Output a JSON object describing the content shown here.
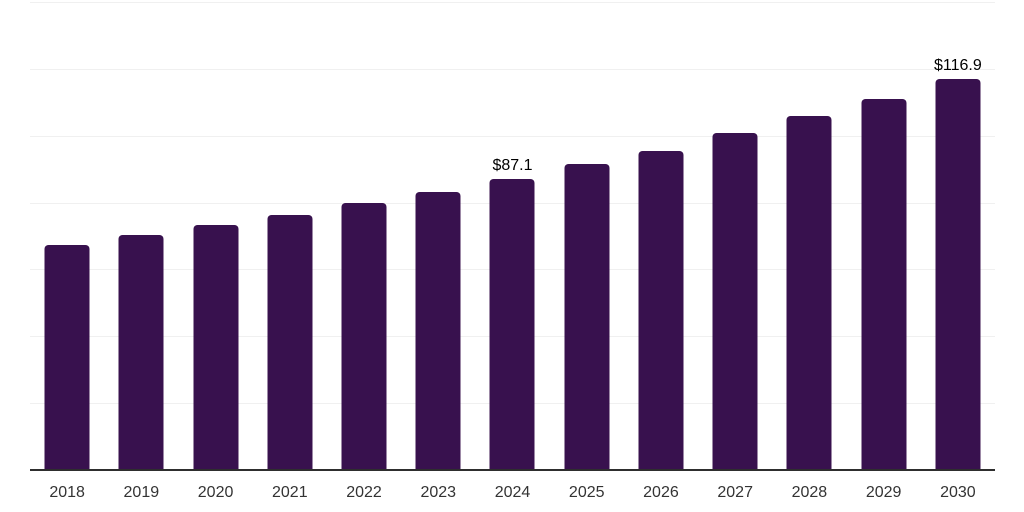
{
  "chart_data": {
    "type": "bar",
    "title": "",
    "xlabel": "",
    "ylabel": "",
    "categories": [
      "2018",
      "2019",
      "2020",
      "2021",
      "2022",
      "2023",
      "2024",
      "2025",
      "2026",
      "2027",
      "2028",
      "2029",
      "2030"
    ],
    "values": [
      67.2,
      70.2,
      73.2,
      76.2,
      79.9,
      83.3,
      87.1,
      91.4,
      95.5,
      100.8,
      105.9,
      111.0,
      116.9
    ],
    "point_labels": [
      "",
      "",
      "",
      "",
      "",
      "",
      "$87.1",
      "",
      "",
      "",
      "",
      "",
      "$116.9"
    ],
    "ylim": [
      0,
      140
    ],
    "grid_step": 20,
    "grid": "horizontal",
    "legend_position": "none",
    "y_tick_labels_visible": false,
    "colors": {
      "bar": "#38114e",
      "gridline": "#f0f0f0",
      "axis_line": "#2e2e2e",
      "tick_label": "#333333",
      "data_label": "#000000",
      "background": "#ffffff"
    }
  }
}
